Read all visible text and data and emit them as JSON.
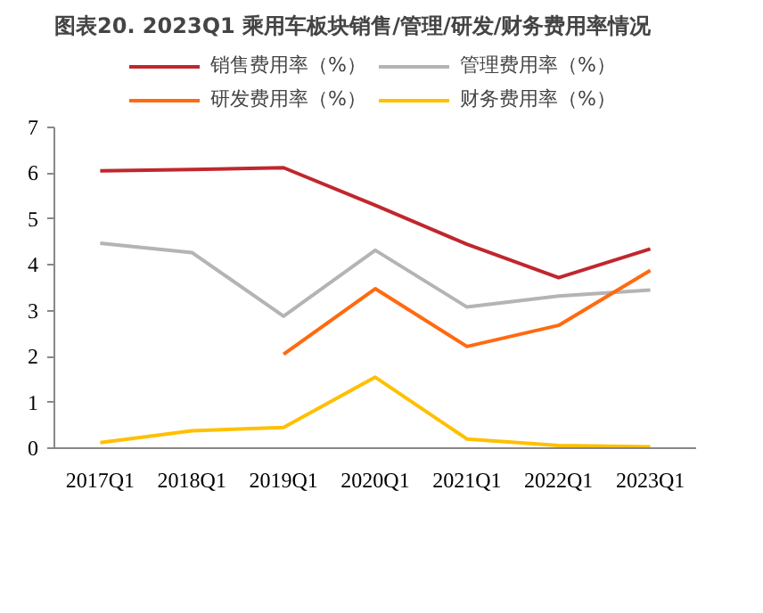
{
  "chart_data": {
    "type": "line",
    "title": "图表20. 2023Q1 乘用车板块销售/管理/研发/财务费用率情况",
    "categories": [
      "2017Q1",
      "2018Q1",
      "2019Q1",
      "2020Q1",
      "2021Q1",
      "2022Q1",
      "2023Q1"
    ],
    "series": [
      {
        "name": "销售费用率（%）",
        "color": "#c0272d",
        "values": [
          6.05,
          6.08,
          6.12,
          5.3,
          4.45,
          3.72,
          4.35
        ]
      },
      {
        "name": "管理费用率（%）",
        "color": "#b4b4b4",
        "values": [
          4.47,
          4.27,
          2.88,
          4.32,
          3.08,
          3.32,
          3.45
        ]
      },
      {
        "name": "研发费用率（%）",
        "color": "#ff6a10",
        "values": [
          null,
          null,
          2.05,
          3.48,
          2.22,
          2.68,
          3.88
        ]
      },
      {
        "name": "财务费用率（%）",
        "color": "#ffc000",
        "values": [
          0.12,
          0.38,
          0.45,
          1.55,
          0.2,
          0.06,
          0.03
        ]
      }
    ],
    "ylim": [
      0,
      7
    ],
    "yticks": [
      0,
      1,
      2,
      3,
      4,
      5,
      6,
      7
    ],
    "grid": false,
    "legend": "top",
    "marker": "none",
    "line_style": "solid"
  }
}
